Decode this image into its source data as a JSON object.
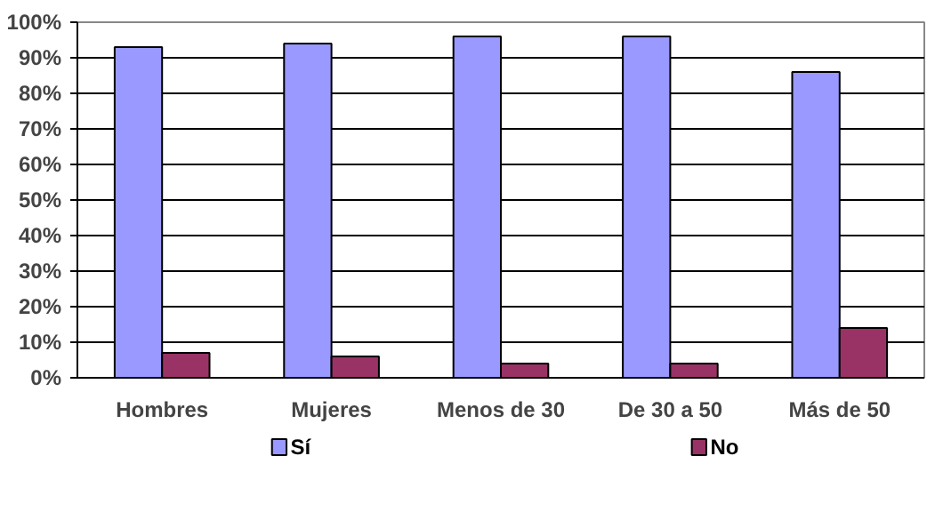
{
  "chart_data": {
    "type": "bar",
    "categories": [
      "Hombres",
      "Mujeres",
      "Menos de 30",
      "De 30 a 50",
      "Más de 50"
    ],
    "series": [
      {
        "name": "Sí",
        "color": "#9999ff",
        "values": [
          93,
          94,
          96,
          96,
          86
        ]
      },
      {
        "name": "No",
        "color": "#993366",
        "values": [
          7,
          6,
          4,
          4,
          14
        ]
      }
    ],
    "ylim": [
      0,
      100
    ],
    "yticks": [
      {
        "value": 0,
        "label": "0%"
      },
      {
        "value": 10,
        "label": "10%"
      },
      {
        "value": 20,
        "label": "20%"
      },
      {
        "value": 30,
        "label": "30%"
      },
      {
        "value": 40,
        "label": "40%"
      },
      {
        "value": 50,
        "label": "50%"
      },
      {
        "value": 60,
        "label": "60%"
      },
      {
        "value": 70,
        "label": "70%"
      },
      {
        "value": 80,
        "label": "80%"
      },
      {
        "value": 90,
        "label": "90%"
      },
      {
        "value": 100,
        "label": "100%"
      }
    ],
    "grid": "y",
    "legend": "bottom"
  }
}
